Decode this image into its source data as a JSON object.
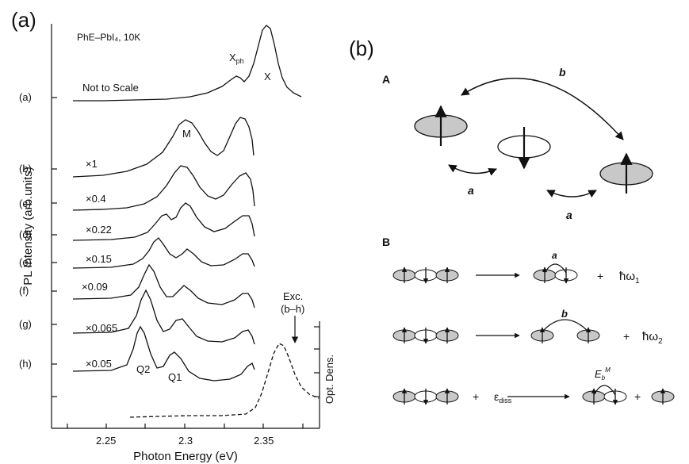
{
  "panel_a": {
    "letter": "(a)",
    "sample_label": "PhE–PbI₄, 10K",
    "y_axis_label": "PL Intensity (arb.units)",
    "x_axis_label": "Photon Energy (eV)",
    "right_axis_label": "Opt. Dens.",
    "note": "Not to Scale",
    "peak_labels": {
      "xph": "X",
      "xph_sub": "ph",
      "x": "X",
      "m": "M",
      "q2": "Q2",
      "q1": "Q1"
    },
    "exc_label": "Exc.",
    "exc_range": "(b–h)",
    "curve_labels": [
      "(a)",
      "(b)",
      "(c)",
      "(d)",
      "(e)",
      "(f)",
      "(g)",
      "(h)"
    ],
    "multipliers": [
      "×1",
      "×0.4",
      "×0.22",
      "×0.15",
      "×0.09",
      "×0.065",
      "×0.05"
    ],
    "x_ticks": [
      "2.25",
      "2.3",
      "2.35"
    ]
  },
  "panel_b": {
    "letter": "(b)",
    "section_a": "A",
    "section_b": "B",
    "hop_a": "a",
    "hop_b": "b",
    "plus": "+",
    "energy_1": "ħω",
    "energy_1_sub": "1",
    "energy_2": "ħω",
    "energy_2_sub": "2",
    "diss": "ε",
    "diss_sub": "diss",
    "binding": "E",
    "binding_sub": "b",
    "binding_sup": "M"
  },
  "colors": {
    "ink": "#111111",
    "fill_gray": "#c8c8c8",
    "background": "#ffffff"
  }
}
